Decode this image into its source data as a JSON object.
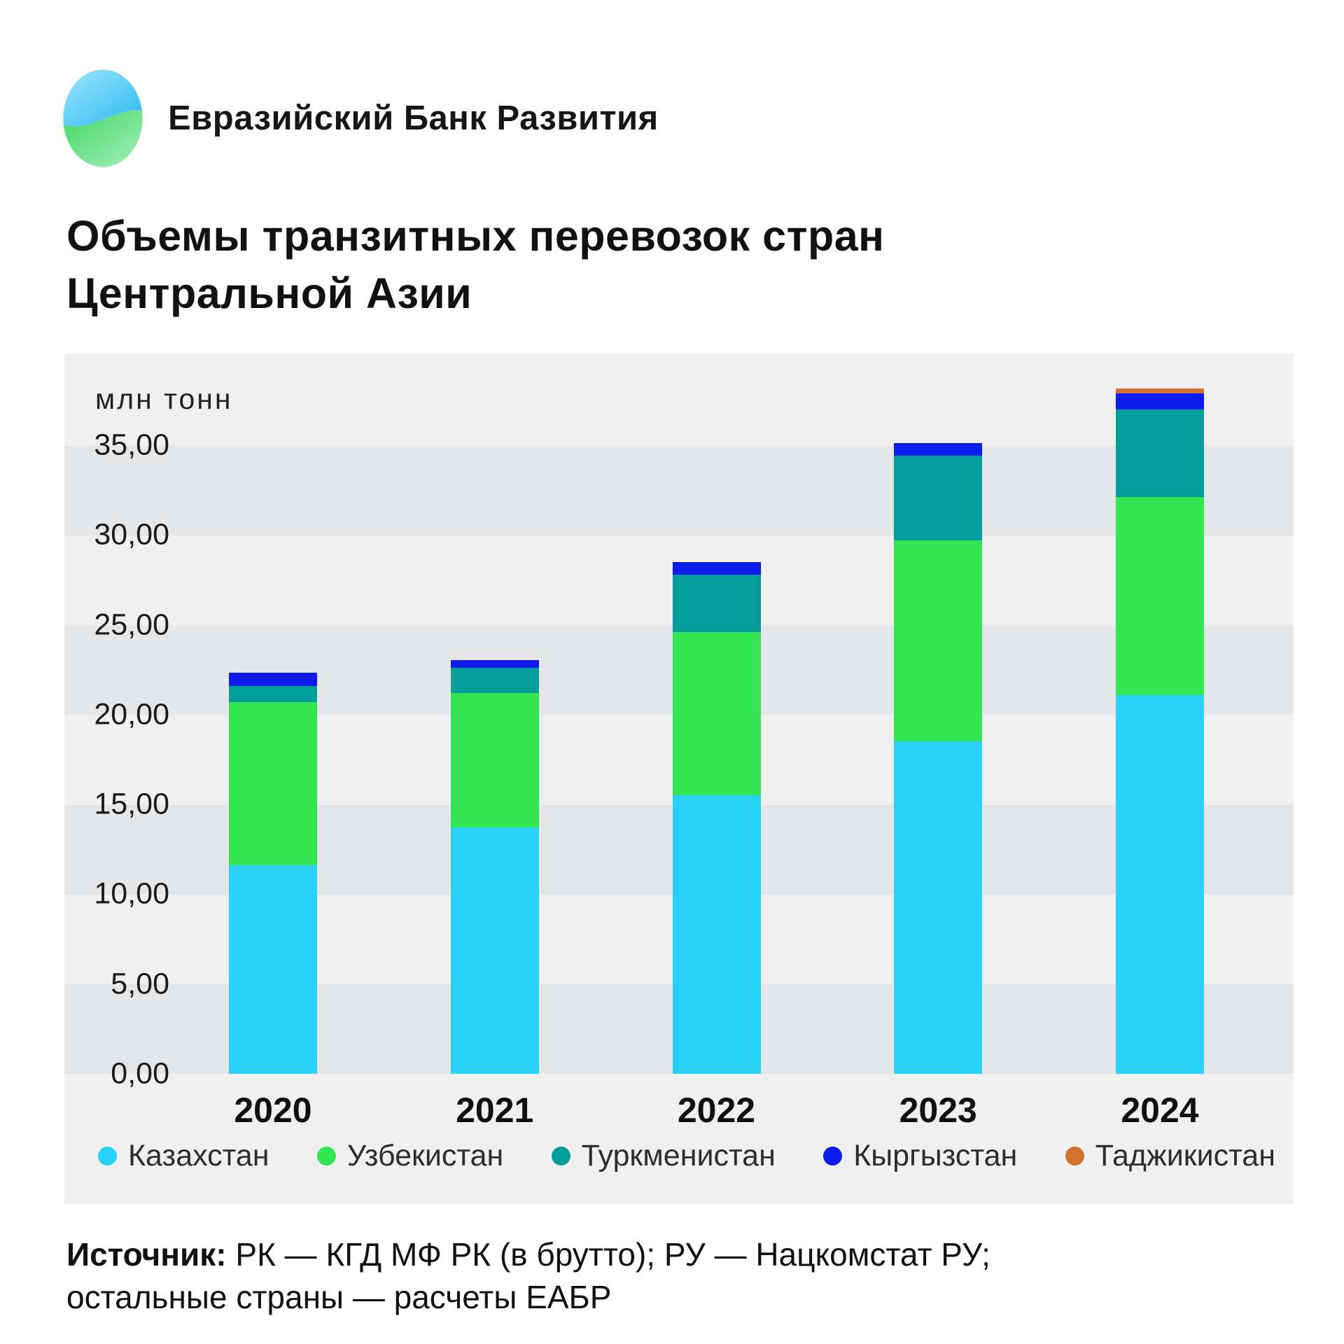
{
  "header": {
    "bank_name": "Евразийский Банк Развития"
  },
  "title_line1": "Объемы транзитных перевозок стран",
  "title_line2": "Центральной Азии",
  "unit_label": "млн тонн",
  "source": {
    "prefix": "Источник:",
    "line1_rest": " РК — КГД МФ РК (в брутто); РУ — Нацкомстат РУ;",
    "line2": "остальные страны — расчеты ЕАБР"
  },
  "colors": {
    "kazakhstan": "#2BD2F8",
    "uzbekistan": "#34E553",
    "turkmenistan": "#049E9A",
    "kyrgyzstan": "#0B1CEB",
    "tajikistan": "#D2722E",
    "panel_bg": "#f0f0f1",
    "stripe": "#e4e6e8"
  },
  "chart_data": {
    "type": "bar",
    "stacked": true,
    "title": "Объемы транзитных перевозок стран Центральной Азии",
    "ylabel": "млн тонн",
    "xlabel": "",
    "ylim": [
      0,
      35
    ],
    "grid": "horizontal-bands",
    "legend_position": "bottom",
    "categories": [
      "2020",
      "2021",
      "2022",
      "2023",
      "2024"
    ],
    "yticks": [
      "35,00",
      "30,00",
      "25,00",
      "20,00",
      "15,00",
      "10,00",
      "5,00",
      "0,00"
    ],
    "ytick_values": [
      35,
      30,
      25,
      20,
      15,
      10,
      5,
      0
    ],
    "series": [
      {
        "name": "Казахстан",
        "color": "#2BD2F8",
        "values": [
          11.6,
          13.7,
          15.5,
          18.5,
          21.1
        ]
      },
      {
        "name": "Узбекистан",
        "color": "#34E553",
        "values": [
          9.1,
          7.5,
          9.1,
          11.2,
          11.0
        ]
      },
      {
        "name": "Туркменистан",
        "color": "#049E9A",
        "values": [
          0.9,
          1.4,
          3.2,
          4.7,
          4.9
        ]
      },
      {
        "name": "Кыргызстан",
        "color": "#0B1CEB",
        "values": [
          0.75,
          0.45,
          0.7,
          0.7,
          0.9
        ]
      },
      {
        "name": "Таджикистан",
        "color": "#D2722E",
        "values": [
          0,
          0,
          0,
          0,
          0.25
        ]
      }
    ],
    "totals": [
      22.35,
      23.05,
      28.5,
      35.1,
      38.15
    ]
  }
}
